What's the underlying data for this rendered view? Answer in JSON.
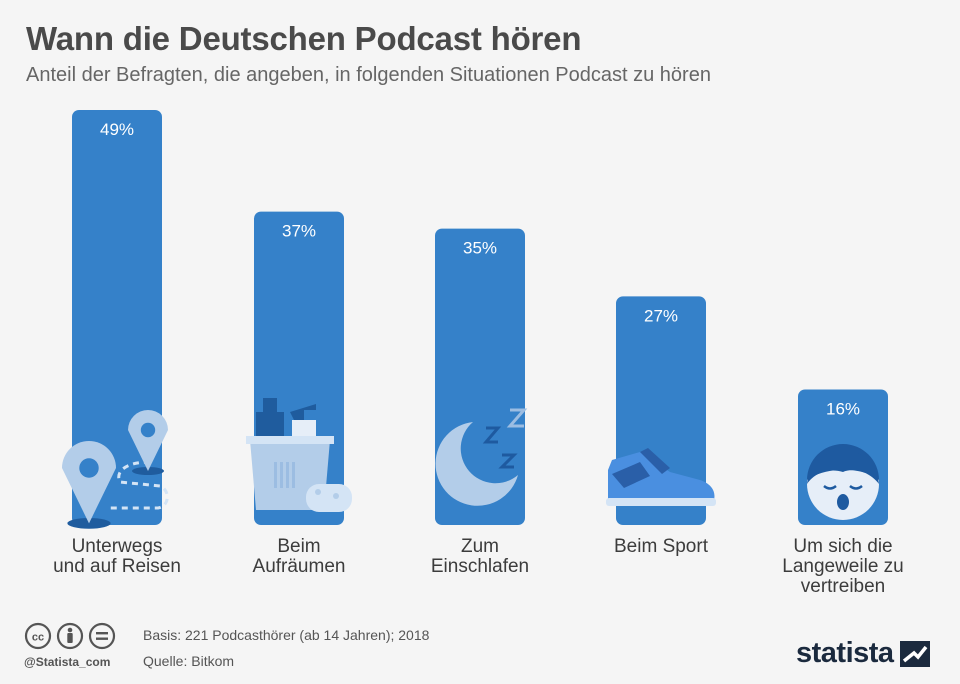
{
  "title": "Wann die Deutschen Podcast hören",
  "subtitle": "Anteil der Befragten, die angeben, in folgenden Situationen Podcast zu hören",
  "chart_data": {
    "type": "bar",
    "categories": [
      [
        "Unterwegs",
        "und auf Reisen"
      ],
      [
        "Beim",
        "Aufräumen"
      ],
      [
        "Zum",
        "Einschlafen"
      ],
      [
        "Beim Sport"
      ],
      [
        "Um sich die",
        "Langeweile zu",
        "vertreiben"
      ]
    ],
    "values": [
      49,
      37,
      35,
      27,
      16
    ],
    "value_labels": [
      "49%",
      "37%",
      "35%",
      "27%",
      "16%"
    ],
    "unit": "%",
    "ylim": [
      0,
      49
    ],
    "grid": false,
    "icons": [
      "map-pin-route-icon",
      "cleaning-bucket-icon",
      "moon-sleep-icon",
      "sneaker-icon",
      "yawning-face-icon"
    ],
    "bar_color": "#3581c9",
    "light_color": "#b3cde9"
  },
  "footer": {
    "basis": "Basis: 221 Podcasthörer (ab 14 Jahren); 2018",
    "source": "Quelle: Bitkom",
    "handle": "@Statista_com",
    "brand": "statista",
    "license_icons": [
      "cc-icon",
      "person-icon",
      "equals-icon"
    ]
  }
}
